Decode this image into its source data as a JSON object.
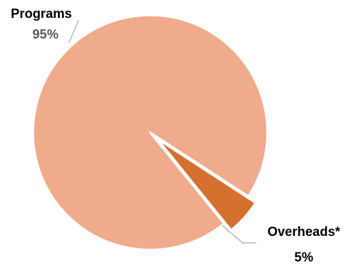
{
  "chart_data": {
    "type": "pie",
    "slices": [
      {
        "label": "Programs",
        "value": 95,
        "value_label": "95%",
        "color": "#f0aa8c"
      },
      {
        "label": "Overheads*",
        "value": 5,
        "value_label": "5%",
        "color": "#d5702f"
      }
    ],
    "exploded_slice": "Overheads*",
    "legend": "none"
  }
}
